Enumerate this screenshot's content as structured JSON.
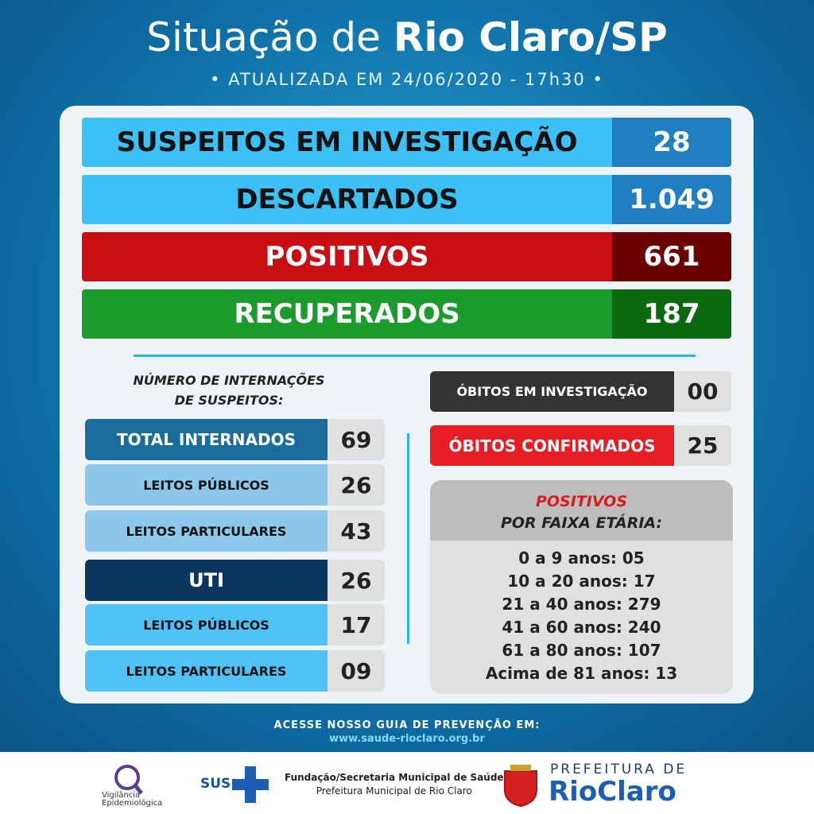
{
  "header": {
    "title_regular": "Situação de",
    "title_bold": "Rio Claro/SP",
    "subtitle": "• ATUALIZADA EM 24/06/2020 - 17h30 •"
  },
  "main_rows": [
    {
      "label": "SUSPEITOS EM INVESTIGAÇÃO",
      "value": "28"
    },
    {
      "label": "DESCARTADOS",
      "value": "1.049"
    },
    {
      "label": "POSITIVOS",
      "value": "661"
    },
    {
      "label": "RECUPERADOS",
      "value": "187"
    }
  ],
  "hospital": {
    "heading": [
      "NÚMERO DE INTERNAÇÕES",
      "DE SUSPEITOS:"
    ],
    "rows": [
      {
        "label": "TOTAL INTERNADOS",
        "value": "69"
      },
      {
        "label": "LEITOS PÚBLICOS",
        "value": "26"
      },
      {
        "label": "LEITOS PARTICULARES",
        "value": "43"
      },
      {
        "label": "UTI",
        "value": "26"
      },
      {
        "label": "LEITOS PÚBLICOS",
        "value": "17"
      },
      {
        "label": "LEITOS PARTICULARES",
        "value": "09"
      }
    ]
  },
  "deaths": [
    {
      "label": "ÓBITOS EM INVESTIGAÇÃO",
      "value": "00"
    },
    {
      "label": "ÓBITOS CONFIRMADOS",
      "value": "25"
    }
  ],
  "age": {
    "heading": [
      "POSITIVOS",
      "POR FAIXA ETÁRIA:"
    ],
    "lines": [
      "0 a 9 anos: 05",
      "10 a 20 anos: 17",
      "21 a 40 anos: 279",
      "41 a 60 anos: 240",
      "61 a 80 anos: 107",
      "Acima de 81 anos: 13"
    ]
  },
  "footer": {
    "guide": "ACESSE NOSSO GUIA DE PREVENÇÃO EM:",
    "url": "www.saude-rioclaro.org.br"
  },
  "logos": {
    "vigilancia": [
      "Vigilância",
      "Epidemiológica"
    ],
    "sus": "SUS",
    "fundacao": [
      "Fundação/Secretaria Municipal de Saúde",
      "Prefeitura Municipal de Rio Claro"
    ],
    "prefeitura": [
      "PREFEITURA DE",
      "RioClaro"
    ]
  }
}
